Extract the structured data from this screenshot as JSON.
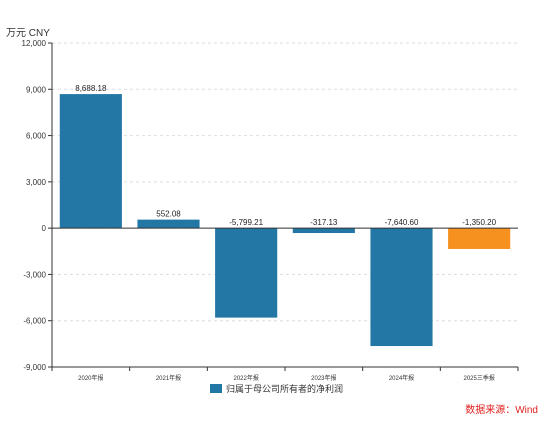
{
  "unit_label": "万元  CNY",
  "source": "数据来源：Wind",
  "chart_data": {
    "type": "bar",
    "categories": [
      "2020年报",
      "2021年报",
      "2022年报",
      "2023年报",
      "2024年报",
      "2025三季报"
    ],
    "series": [
      {
        "name": "归属于母公司所有者的净利润",
        "values": [
          8688.18,
          552.08,
          -5799.21,
          -317.13,
          -7640.6,
          -1350.2
        ],
        "labels": [
          "8,688.18",
          "552.08",
          "-5,799.21",
          "-317.13",
          "-7,640.60",
          "-1,350.20"
        ],
        "color": "#2277a5",
        "highlight_color": "#f6901e",
        "highlight_index": 5
      }
    ],
    "y_ticks": [
      12000,
      9000,
      6000,
      3000,
      0,
      -3000,
      -6000,
      -9000
    ],
    "y_tick_labels": [
      "12,000",
      "9,000",
      "6,000",
      "3,000",
      "0",
      "-3,000",
      "-6,000",
      "-9,000"
    ],
    "ylim": [
      -9000,
      12000
    ],
    "grid": true,
    "legend_position": "bottom"
  }
}
